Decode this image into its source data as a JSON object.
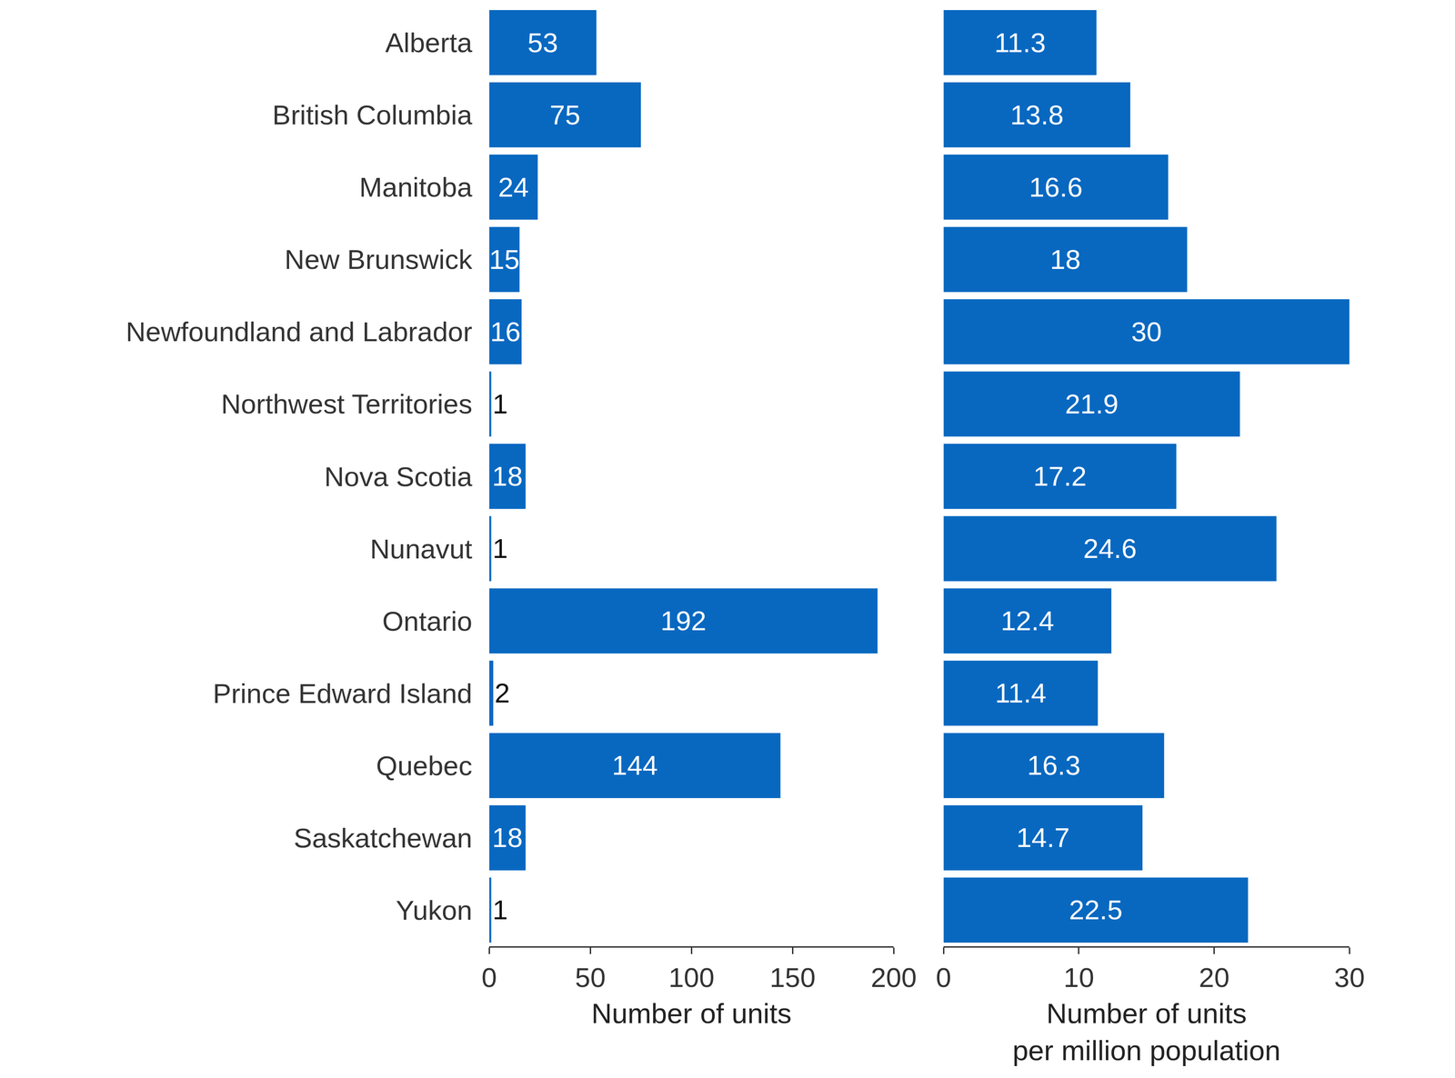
{
  "chart_data": [
    {
      "type": "bar",
      "orientation": "horizontal",
      "categories": [
        "Alberta",
        "British Columbia",
        "Manitoba",
        "New Brunswick",
        "Newfoundland and Labrador",
        "Northwest Territories",
        "Nova Scotia",
        "Nunavut",
        "Ontario",
        "Prince Edward Island",
        "Quebec",
        "Saskatchewan",
        "Yukon"
      ],
      "values": [
        53,
        75,
        24,
        15,
        16,
        1,
        18,
        1,
        192,
        2,
        144,
        18,
        1
      ],
      "color": "#0868c0",
      "xlabel": "Number of units",
      "xlim": [
        0,
        200
      ],
      "xticks": [
        0,
        50,
        100,
        150,
        200
      ],
      "data_labels": true,
      "grid": false
    },
    {
      "type": "bar",
      "orientation": "horizontal",
      "categories": [
        "Alberta",
        "British Columbia",
        "Manitoba",
        "New Brunswick",
        "Newfoundland and Labrador",
        "Northwest Territories",
        "Nova Scotia",
        "Nunavut",
        "Ontario",
        "Prince Edward Island",
        "Quebec",
        "Saskatchewan",
        "Yukon"
      ],
      "values": [
        11.3,
        13.8,
        16.6,
        18,
        30,
        21.9,
        17.2,
        24.6,
        12.4,
        11.4,
        16.3,
        14.7,
        22.5
      ],
      "color": "#0868c0",
      "xlabel": "Number of units\nper million population",
      "xlim": [
        0,
        30
      ],
      "xticks": [
        0,
        10,
        20,
        30
      ],
      "data_labels": true,
      "grid": false,
      "tick_labels": "x"
    }
  ]
}
